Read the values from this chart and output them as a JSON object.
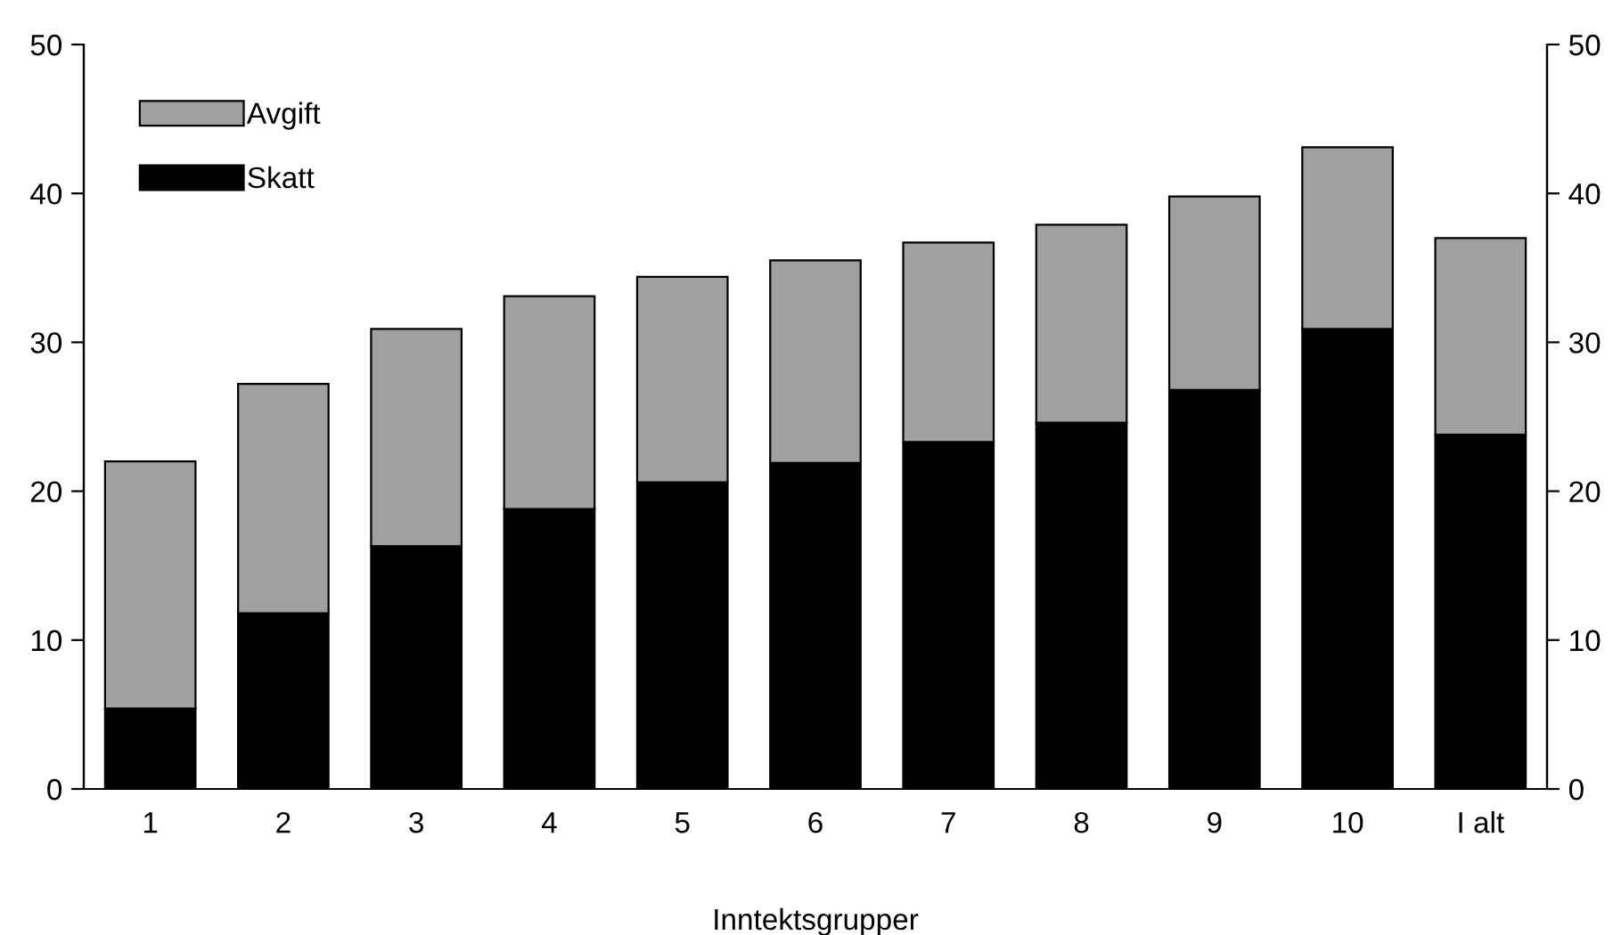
{
  "chart_data": {
    "type": "bar",
    "stacked": true,
    "xlabel": "Inntektsgrupper",
    "categories": [
      "1",
      "2",
      "3",
      "4",
      "5",
      "6",
      "7",
      "8",
      "9",
      "10",
      "I alt"
    ],
    "series": [
      {
        "name": "Skatt",
        "color": "#000000",
        "values": [
          5.4,
          11.8,
          16.3,
          18.8,
          20.6,
          21.9,
          23.3,
          24.6,
          26.8,
          30.9,
          23.8
        ]
      },
      {
        "name": "Avgift",
        "color": "#a0a0a0",
        "values": [
          16.6,
          15.4,
          14.6,
          14.3,
          13.8,
          13.6,
          13.4,
          13.3,
          13.0,
          12.2,
          13.2
        ]
      }
    ],
    "ylim": [
      0,
      50
    ],
    "yticks": [
      0,
      10,
      20,
      30,
      40,
      50
    ],
    "y2lim": [
      0,
      50
    ],
    "y2ticks": [
      0,
      10,
      20,
      30,
      40,
      50
    ],
    "legend": "top left",
    "grid": false
  }
}
